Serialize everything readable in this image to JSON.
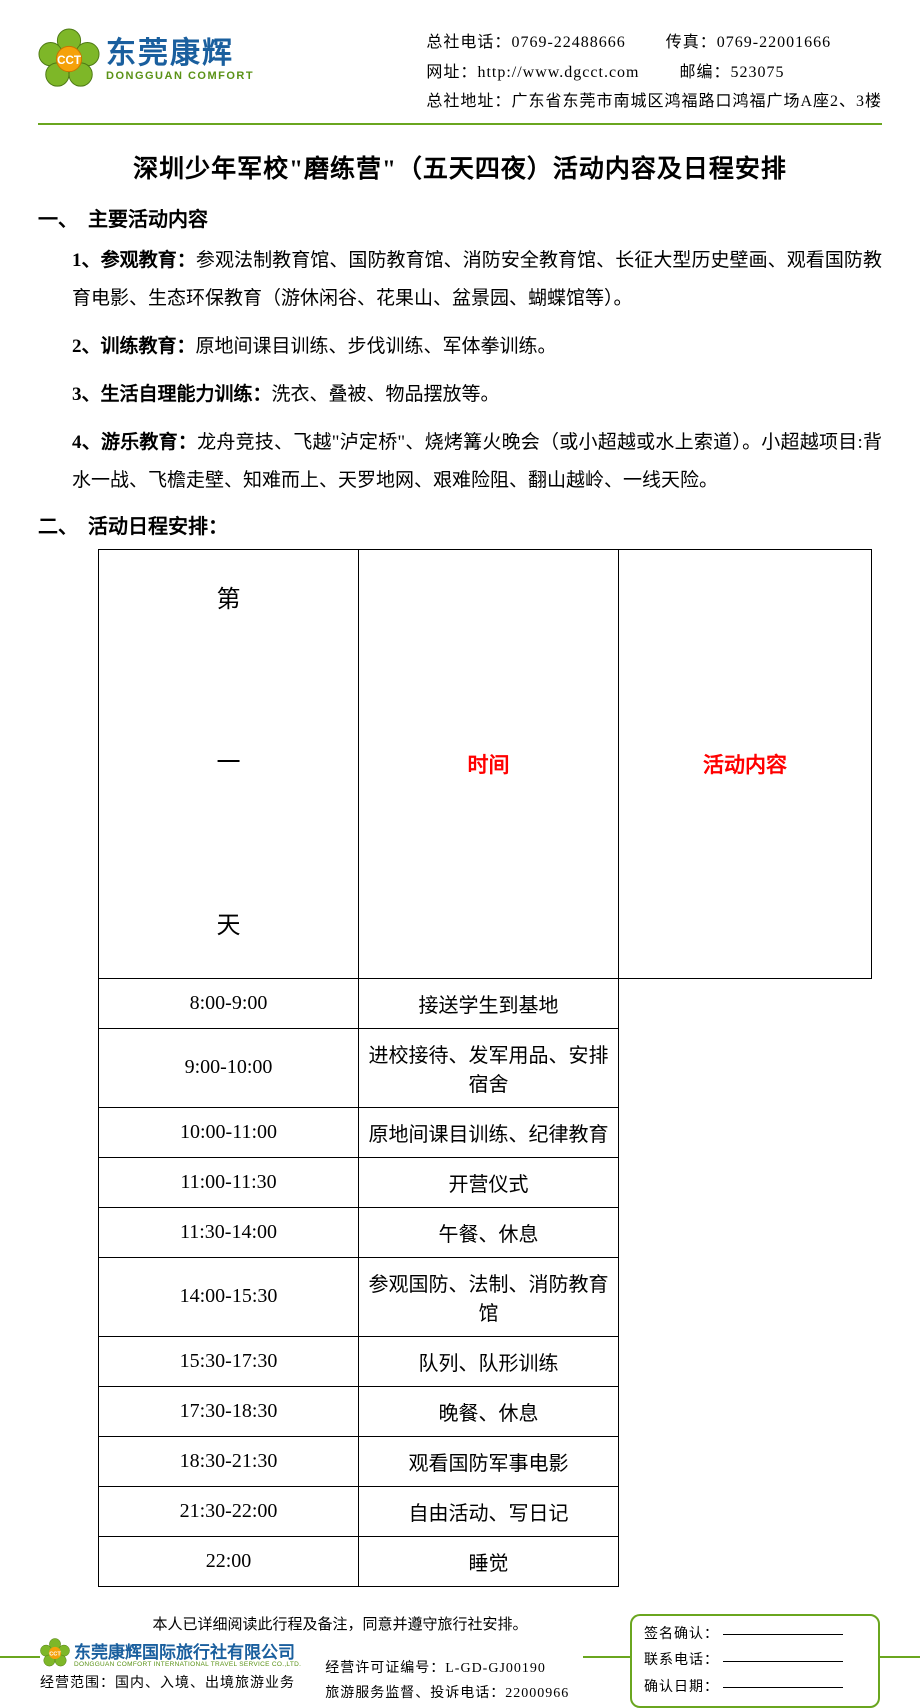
{
  "colors": {
    "accent_green": "#6aa61f",
    "brand_blue": "#1a5f9e",
    "header_red": "#ff0000",
    "text": "#000000",
    "logo_orange": "#f5a10a",
    "background": "#ffffff"
  },
  "header": {
    "logo_cn": "东莞康辉",
    "logo_en": "DONGGUAN COMFORT",
    "phone_label": "总社电话：",
    "phone": "0769-22488666",
    "fax_label": "传真：",
    "fax": "0769-22001666",
    "web_label": "网址：",
    "web": "http://www.dgcct.com",
    "zip_label": "邮编：",
    "zip": "523075",
    "addr_label": "总社地址：",
    "addr": "广东省东莞市南城区鸿福路口鸿福广场A座2、3楼"
  },
  "title": "深圳少年军校\"磨练营\"（五天四夜）活动内容及日程安排",
  "section1": {
    "heading": "一、　主要活动内容",
    "items": [
      {
        "num": "1、",
        "label": "参观教育：",
        "text": "参观法制教育馆、国防教育馆、消防安全教育馆、长征大型历史壁画、观看国防教育电影、生态环保教育（游休闲谷、花果山、盆景园、蝴蝶馆等）。"
      },
      {
        "num": "2、",
        "label": "训练教育：",
        "text": "原地间课目训练、步伐训练、军体拳训练。"
      },
      {
        "num": "3、",
        "label": "生活自理能力训练：",
        "text": "洗衣、叠被、物品摆放等。"
      },
      {
        "num": "4、",
        "label": "游乐教育：",
        "text": "龙舟竞技、飞越\"泸定桥\"、烧烤篝火晚会（或小超越或水上索道）。小超越项目:背水一战、飞檐走壁、知难而上、天罗地网、艰难险阻、翻山越岭、一线天险。"
      }
    ]
  },
  "section2": {
    "heading": "二、　活动日程安排：",
    "table": {
      "col_time": "时间",
      "col_activity": "活动内容",
      "day_label": "第\n\n一\n\n天",
      "rows": [
        {
          "time": "8:00-9:00",
          "act": "接送学生到基地"
        },
        {
          "time": "9:00-10:00",
          "act": "进校接待、发军用品、安排宿舍"
        },
        {
          "time": "10:00-11:00",
          "act": "原地间课目训练、纪律教育"
        },
        {
          "time": "11:00-11:30",
          "act": "开营仪式"
        },
        {
          "time": "11:30-14:00",
          "act": "午餐、休息"
        },
        {
          "time": "14:00-15:30",
          "act": "参观国防、法制、消防教育馆"
        },
        {
          "time": "15:30-17:30",
          "act": "队列、队形训练"
        },
        {
          "time": "17:30-18:30",
          "act": "晚餐、休息"
        },
        {
          "time": "18:30-21:30",
          "act": "观看国防军事电影"
        },
        {
          "time": "21:30-22:00",
          "act": "自由活动、写日记"
        },
        {
          "time": "22:00",
          "act": "睡觉"
        }
      ]
    }
  },
  "footer": {
    "consent": "本人已详细阅读此行程及备注，同意并遵守旅行社安排。",
    "company_cn": "东莞康辉国际旅行社有限公司",
    "company_en": "DONGGUAN COMFORT INTERNATIONAL TRAVEL SERVICE CO.,LTD.",
    "scope": "经营范围：国内、入境、出境旅游业务",
    "license": "经营许可证编号：L-GD-GJ00190",
    "complaint": "旅游服务监督、投诉电话：22000966",
    "sign_label": "签名确认：",
    "phone_label": "联系电话：",
    "date_label": "确认日期："
  }
}
